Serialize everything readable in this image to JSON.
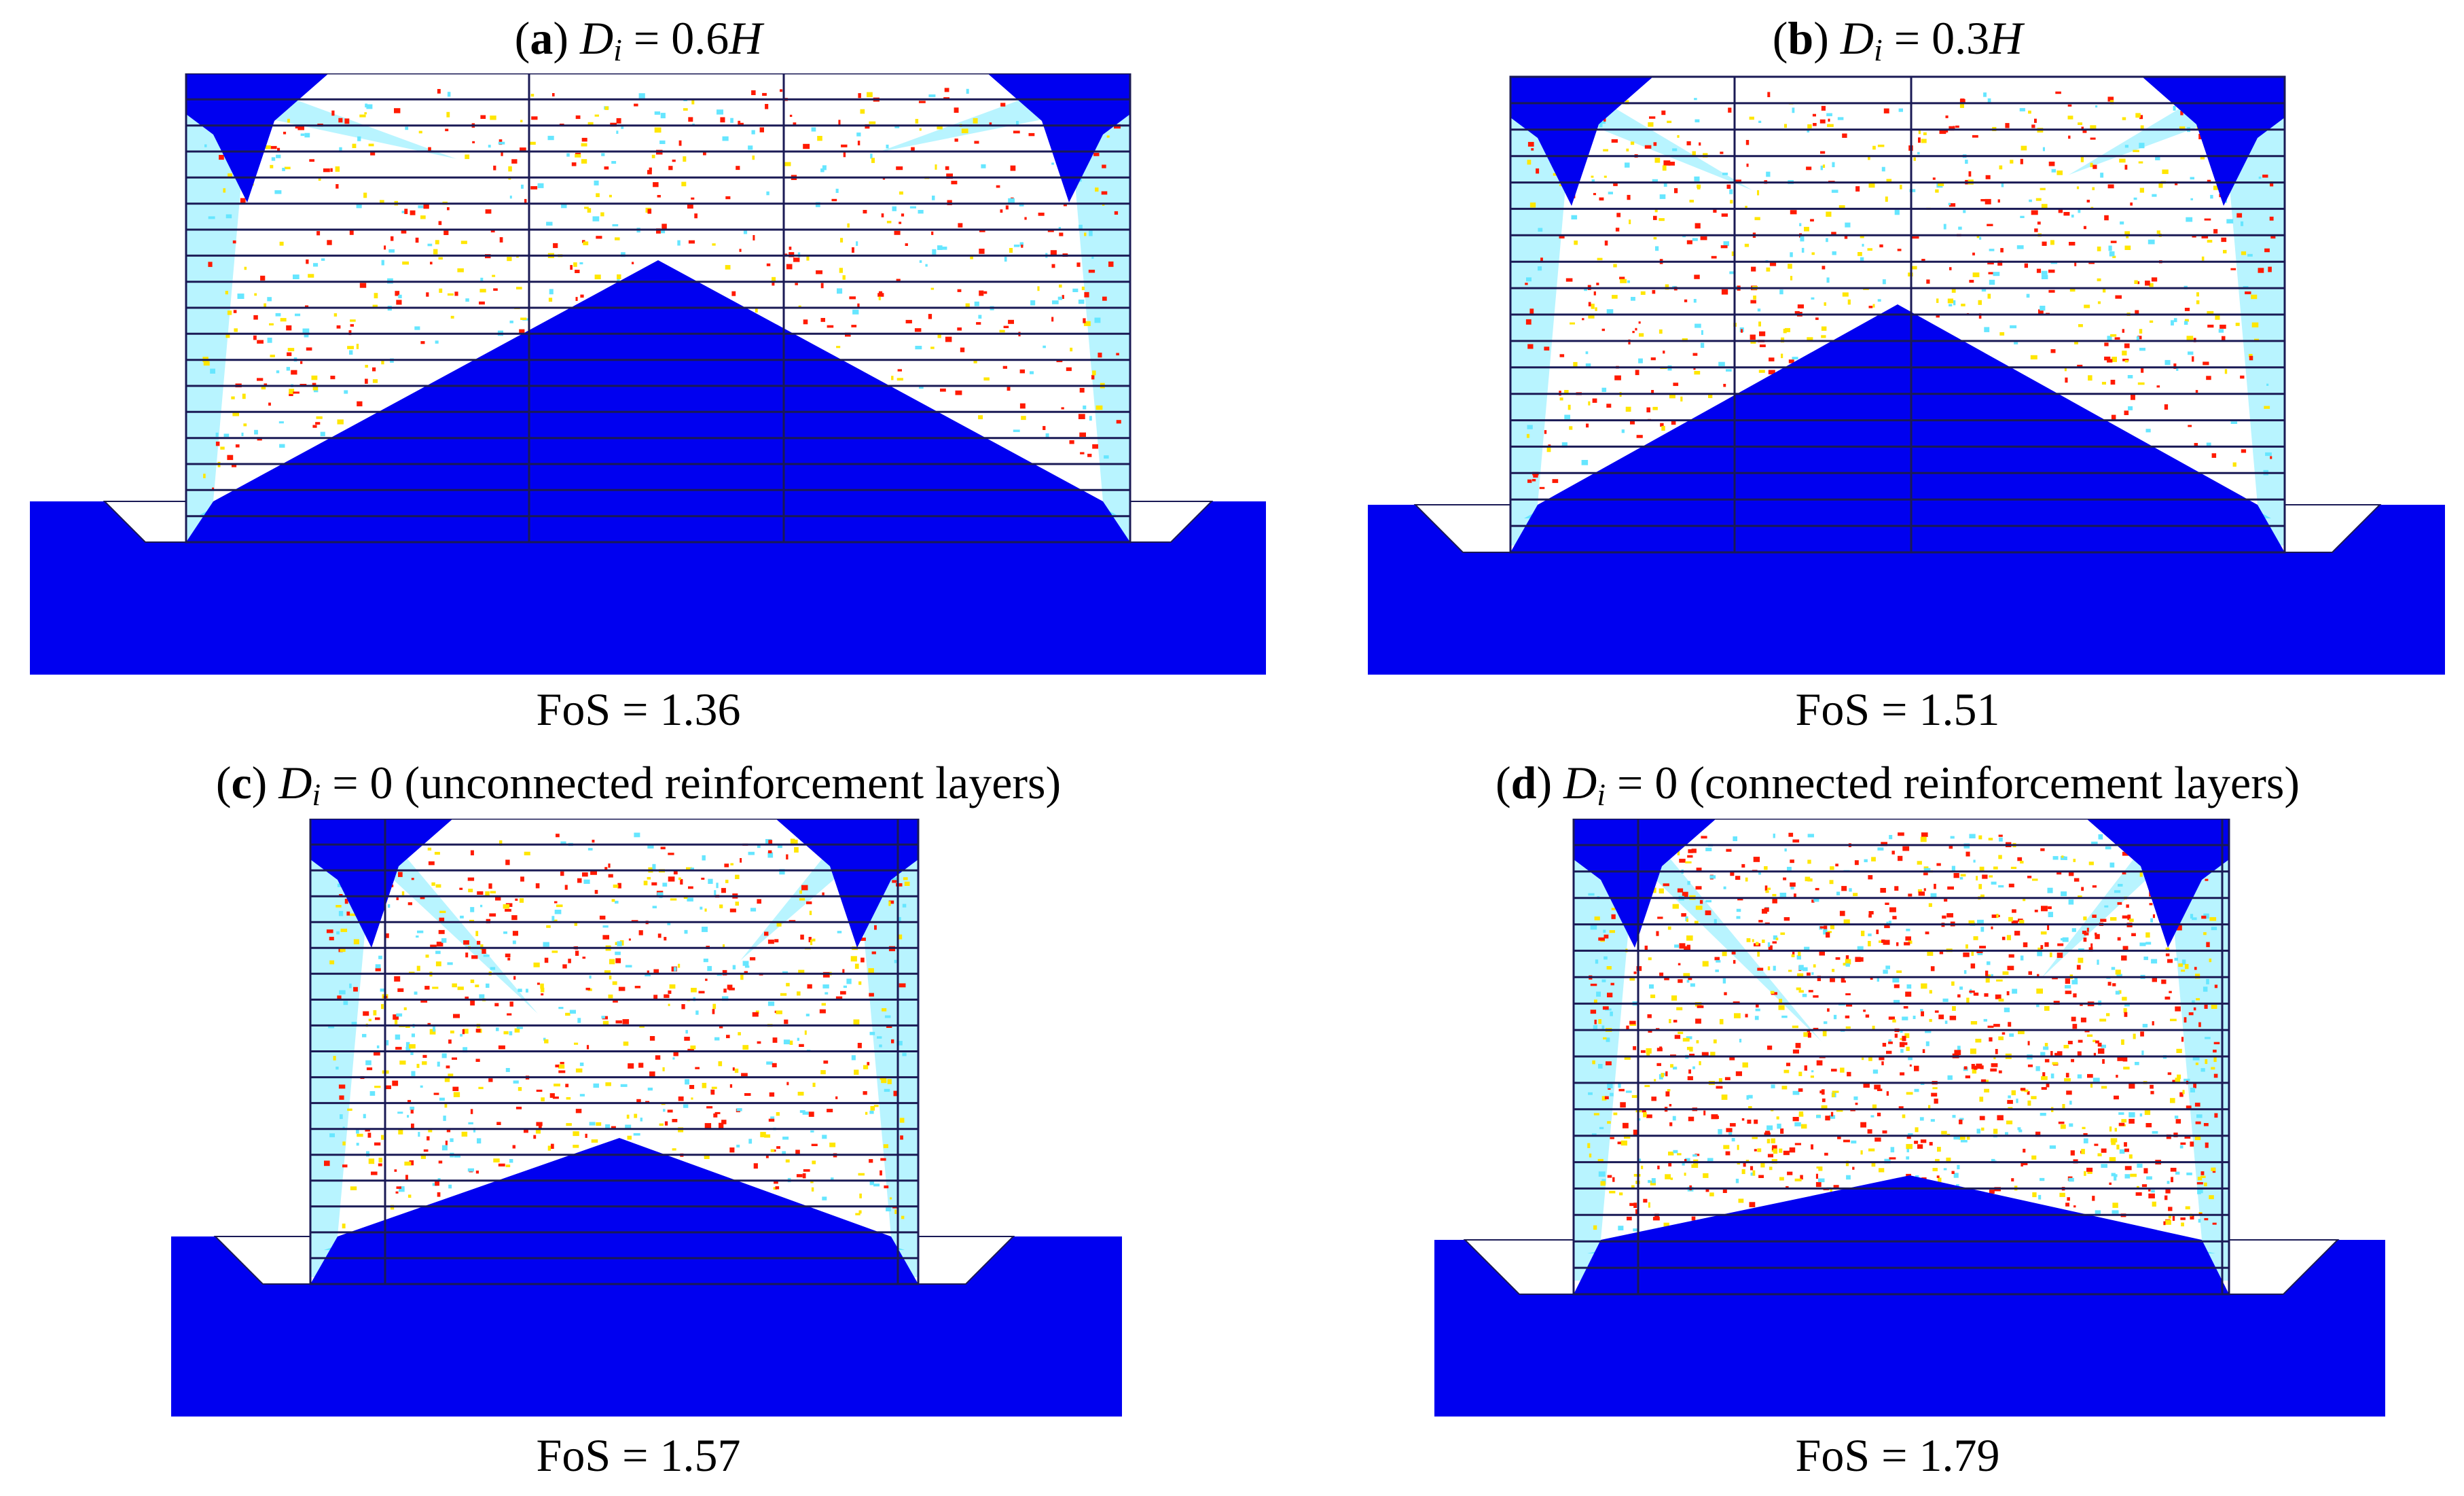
{
  "colors": {
    "deep_blue": "#0000f0",
    "cyan": "#66e6ff",
    "light_cyan": "#b8f4ff",
    "yellow": "#ffe600",
    "red": "#ff1a00",
    "grid_line": "#1a1a55"
  },
  "panels": [
    {
      "letter": "a",
      "var_main": "D",
      "var_sub": "i",
      "rest_pre": " = 0.6",
      "rest_ital": "H",
      "rest_post": "",
      "fos": "FoS = 1.36",
      "di_ratio": 0.6,
      "connected": false
    },
    {
      "letter": "b",
      "var_main": "D",
      "var_sub": "i",
      "rest_pre": " = 0.3",
      "rest_ital": "H",
      "rest_post": "",
      "fos": "FoS = 1.51",
      "di_ratio": 0.3,
      "connected": false
    },
    {
      "letter": "c",
      "var_main": "D",
      "var_sub": "i",
      "rest_pre": " = 0 (unconnected reinforcement layers)",
      "rest_ital": "",
      "rest_post": "",
      "fos": "FoS = 1.57",
      "di_ratio": 0,
      "connected": false
    },
    {
      "letter": "d",
      "var_main": "D",
      "var_sub": "i",
      "rest_pre": " = 0 (connected reinforcement layers)",
      "rest_ital": "",
      "rest_post": "",
      "fos": "FoS = 1.79",
      "di_ratio": 0,
      "connected": true
    }
  ]
}
